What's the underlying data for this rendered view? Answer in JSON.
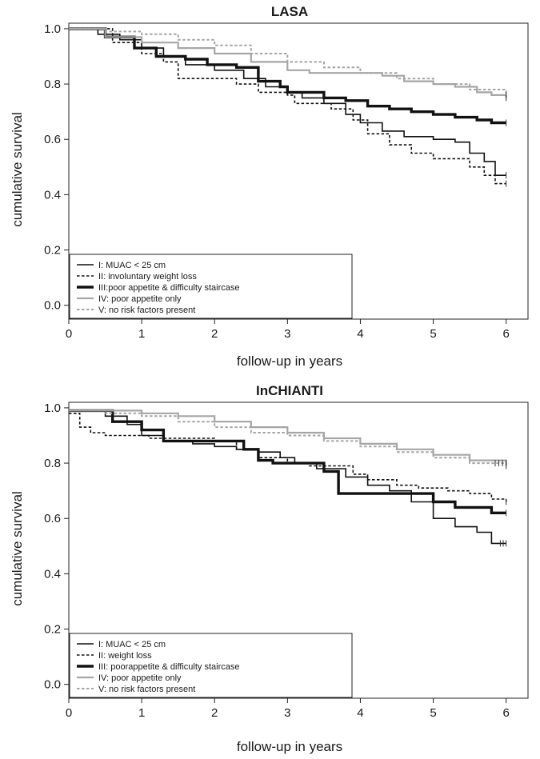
{
  "chart_data": [
    {
      "type": "line",
      "title": "LASA",
      "xlabel": "follow-up in years",
      "ylabel": "cumulative survival",
      "xlim": [
        0,
        6.3
      ],
      "ylim": [
        -0.05,
        1.02
      ],
      "xticks": [
        "0",
        "1",
        "2",
        "3",
        "4",
        "5",
        "6"
      ],
      "yticks": [
        "0.0",
        "0.2",
        "0.4",
        "0.6",
        "0.8",
        "1.0"
      ],
      "grid": false,
      "legend_position": "bottom-left",
      "series": [
        {
          "name": "I: MUAC < 25 cm",
          "color": "#111111",
          "style": "solid",
          "width": 1.6,
          "points": [
            [
              0,
              1.0
            ],
            [
              0.4,
              0.98
            ],
            [
              0.7,
              0.96
            ],
            [
              1.0,
              0.93
            ],
            [
              1.3,
              0.9
            ],
            [
              1.6,
              0.87
            ],
            [
              2.0,
              0.85
            ],
            [
              2.4,
              0.82
            ],
            [
              2.7,
              0.79
            ],
            [
              3.0,
              0.77
            ],
            [
              3.2,
              0.75
            ],
            [
              3.5,
              0.73
            ],
            [
              3.8,
              0.69
            ],
            [
              4.0,
              0.66
            ],
            [
              4.3,
              0.63
            ],
            [
              4.6,
              0.61
            ],
            [
              5.0,
              0.6
            ],
            [
              5.3,
              0.59
            ],
            [
              5.5,
              0.55
            ],
            [
              5.7,
              0.52
            ],
            [
              5.85,
              0.47
            ],
            [
              6.0,
              0.47
            ]
          ]
        },
        {
          "name": "II: involuntary weight loss",
          "color": "#111111",
          "style": "dashed",
          "width": 1.6,
          "points": [
            [
              0,
              1.0
            ],
            [
              0.3,
              1.0
            ],
            [
              0.6,
              0.95
            ],
            [
              1.0,
              0.91
            ],
            [
              1.3,
              0.88
            ],
            [
              1.5,
              0.82
            ],
            [
              2.0,
              0.82
            ],
            [
              2.3,
              0.8
            ],
            [
              2.6,
              0.77
            ],
            [
              3.0,
              0.76
            ],
            [
              3.1,
              0.73
            ],
            [
              3.3,
              0.73
            ],
            [
              3.6,
              0.71
            ],
            [
              3.9,
              0.67
            ],
            [
              4.1,
              0.62
            ],
            [
              4.4,
              0.58
            ],
            [
              4.7,
              0.55
            ],
            [
              5.0,
              0.53
            ],
            [
              5.3,
              0.53
            ],
            [
              5.5,
              0.5
            ],
            [
              5.7,
              0.47
            ],
            [
              5.85,
              0.44
            ],
            [
              6.0,
              0.44
            ]
          ]
        },
        {
          "name": "III:poor appetite & difficulty staircase",
          "color": "#111111",
          "style": "solid",
          "width": 3.4,
          "points": [
            [
              0,
              1.0
            ],
            [
              0.5,
              0.97
            ],
            [
              0.9,
              0.93
            ],
            [
              1.2,
              0.9
            ],
            [
              1.6,
              0.89
            ],
            [
              1.9,
              0.87
            ],
            [
              2.3,
              0.86
            ],
            [
              2.6,
              0.81
            ],
            [
              2.9,
              0.79
            ],
            [
              3.0,
              0.77
            ],
            [
              3.3,
              0.77
            ],
            [
              3.5,
              0.75
            ],
            [
              3.8,
              0.74
            ],
            [
              4.1,
              0.72
            ],
            [
              4.4,
              0.71
            ],
            [
              4.7,
              0.7
            ],
            [
              5.0,
              0.69
            ],
            [
              5.3,
              0.68
            ],
            [
              5.6,
              0.67
            ],
            [
              5.8,
              0.66
            ],
            [
              6.0,
              0.66
            ]
          ]
        },
        {
          "name": "IV: poor appetite only",
          "color": "#a6a6a6",
          "style": "solid",
          "width": 2.2,
          "points": [
            [
              0,
              1.0
            ],
            [
              0.5,
              0.97
            ],
            [
              1.0,
              0.95
            ],
            [
              1.5,
              0.93
            ],
            [
              2.0,
              0.91
            ],
            [
              2.5,
              0.88
            ],
            [
              3.0,
              0.85
            ],
            [
              3.3,
              0.84
            ],
            [
              3.6,
              0.84
            ],
            [
              4.0,
              0.84
            ],
            [
              4.3,
              0.83
            ],
            [
              4.6,
              0.81
            ],
            [
              5.0,
              0.8
            ],
            [
              5.3,
              0.79
            ],
            [
              5.6,
              0.77
            ],
            [
              5.8,
              0.76
            ],
            [
              6.0,
              0.76
            ]
          ]
        },
        {
          "name": "V: no risk factors present",
          "color": "#a6a6a6",
          "style": "dashed",
          "width": 2.0,
          "points": [
            [
              0,
              1.0
            ],
            [
              0.5,
              0.99
            ],
            [
              1.0,
              0.98
            ],
            [
              1.5,
              0.96
            ],
            [
              2.0,
              0.94
            ],
            [
              2.5,
              0.91
            ],
            [
              3.0,
              0.88
            ],
            [
              3.5,
              0.86
            ],
            [
              4.0,
              0.84
            ],
            [
              4.5,
              0.82
            ],
            [
              5.0,
              0.8
            ],
            [
              5.5,
              0.78
            ],
            [
              6.0,
              0.75
            ]
          ]
        }
      ],
      "censor_marks": [
        [
          6.0,
          0.66
        ],
        [
          6.0,
          0.76
        ],
        [
          6.0,
          0.47
        ],
        [
          6.0,
          0.44
        ],
        [
          6.0,
          0.75
        ]
      ]
    },
    {
      "type": "line",
      "title": "InCHIANTI",
      "xlabel": "follow-up in years",
      "ylabel": "cumulative survival",
      "xlim": [
        0,
        6.3
      ],
      "ylim": [
        -0.05,
        1.02
      ],
      "xticks": [
        "0",
        "1",
        "2",
        "3",
        "4",
        "5",
        "6"
      ],
      "yticks": [
        "0.0",
        "0.2",
        "0.4",
        "0.6",
        "0.8",
        "1.0"
      ],
      "grid": false,
      "legend_position": "bottom-left",
      "series": [
        {
          "name": "I: MUAC < 25 cm",
          "color": "#111111",
          "style": "solid",
          "width": 1.6,
          "points": [
            [
              0,
              0.99
            ],
            [
              0.5,
              0.97
            ],
            [
              0.8,
              0.94
            ],
            [
              1.0,
              0.9
            ],
            [
              1.3,
              0.88
            ],
            [
              1.7,
              0.87
            ],
            [
              2.0,
              0.86
            ],
            [
              2.3,
              0.85
            ],
            [
              2.6,
              0.84
            ],
            [
              2.9,
              0.82
            ],
            [
              3.1,
              0.8
            ],
            [
              3.4,
              0.78
            ],
            [
              3.8,
              0.75
            ],
            [
              4.1,
              0.72
            ],
            [
              4.4,
              0.7
            ],
            [
              4.7,
              0.66
            ],
            [
              5.0,
              0.6
            ],
            [
              5.3,
              0.57
            ],
            [
              5.6,
              0.55
            ],
            [
              5.8,
              0.51
            ],
            [
              6.0,
              0.51
            ]
          ]
        },
        {
          "name": "II: weight loss",
          "color": "#111111",
          "style": "dashed",
          "width": 1.6,
          "points": [
            [
              0,
              0.98
            ],
            [
              0.15,
              0.93
            ],
            [
              0.3,
              0.91
            ],
            [
              0.5,
              0.9
            ],
            [
              0.8,
              0.9
            ],
            [
              1.1,
              0.89
            ],
            [
              1.5,
              0.89
            ],
            [
              2.0,
              0.88
            ],
            [
              2.3,
              0.85
            ],
            [
              2.6,
              0.82
            ],
            [
              3.0,
              0.8
            ],
            [
              3.3,
              0.79
            ],
            [
              3.6,
              0.79
            ],
            [
              3.9,
              0.76
            ],
            [
              4.1,
              0.74
            ],
            [
              4.5,
              0.72
            ],
            [
              4.8,
              0.71
            ],
            [
              5.2,
              0.7
            ],
            [
              5.5,
              0.69
            ],
            [
              5.8,
              0.67
            ],
            [
              6.0,
              0.66
            ]
          ]
        },
        {
          "name": "III: poorappetite & difficulty staircase",
          "color": "#111111",
          "style": "solid",
          "width": 3.4,
          "points": [
            [
              0,
              0.99
            ],
            [
              0.6,
              0.95
            ],
            [
              1.0,
              0.92
            ],
            [
              1.3,
              0.88
            ],
            [
              1.8,
              0.88
            ],
            [
              2.2,
              0.88
            ],
            [
              2.4,
              0.85
            ],
            [
              2.6,
              0.81
            ],
            [
              2.8,
              0.8
            ],
            [
              3.2,
              0.8
            ],
            [
              3.5,
              0.77
            ],
            [
              3.7,
              0.69
            ],
            [
              4.0,
              0.69
            ],
            [
              4.4,
              0.69
            ],
            [
              4.8,
              0.69
            ],
            [
              5.0,
              0.66
            ],
            [
              5.3,
              0.64
            ],
            [
              5.7,
              0.64
            ],
            [
              5.8,
              0.62
            ],
            [
              6.0,
              0.62
            ]
          ]
        },
        {
          "name": "IV: poor appetite only",
          "color": "#a6a6a6",
          "style": "solid",
          "width": 2.2,
          "points": [
            [
              0,
              0.99
            ],
            [
              0.5,
              0.99
            ],
            [
              1.0,
              0.98
            ],
            [
              1.5,
              0.97
            ],
            [
              2.0,
              0.95
            ],
            [
              2.5,
              0.93
            ],
            [
              3.0,
              0.91
            ],
            [
              3.5,
              0.89
            ],
            [
              4.0,
              0.87
            ],
            [
              4.5,
              0.85
            ],
            [
              5.0,
              0.83
            ],
            [
              5.5,
              0.81
            ],
            [
              6.0,
              0.8
            ]
          ]
        },
        {
          "name": "V: no risk factors present",
          "color": "#a6a6a6",
          "style": "dashed",
          "width": 2.0,
          "points": [
            [
              0,
              0.99
            ],
            [
              0.5,
              0.98
            ],
            [
              1.0,
              0.97
            ],
            [
              1.5,
              0.95
            ],
            [
              2.0,
              0.93
            ],
            [
              2.5,
              0.91
            ],
            [
              3.0,
              0.9
            ],
            [
              3.5,
              0.88
            ],
            [
              4.0,
              0.86
            ],
            [
              4.5,
              0.84
            ],
            [
              5.0,
              0.82
            ],
            [
              5.5,
              0.8
            ],
            [
              6.0,
              0.79
            ]
          ]
        }
      ],
      "censor_marks": [
        [
          5.92,
          0.51
        ],
        [
          5.96,
          0.51
        ],
        [
          6.0,
          0.51
        ],
        [
          6.0,
          0.62
        ],
        [
          6.0,
          0.66
        ],
        [
          5.85,
          0.8
        ],
        [
          5.9,
          0.8
        ],
        [
          5.95,
          0.8
        ],
        [
          6.0,
          0.8
        ],
        [
          6.0,
          0.79
        ]
      ]
    }
  ]
}
